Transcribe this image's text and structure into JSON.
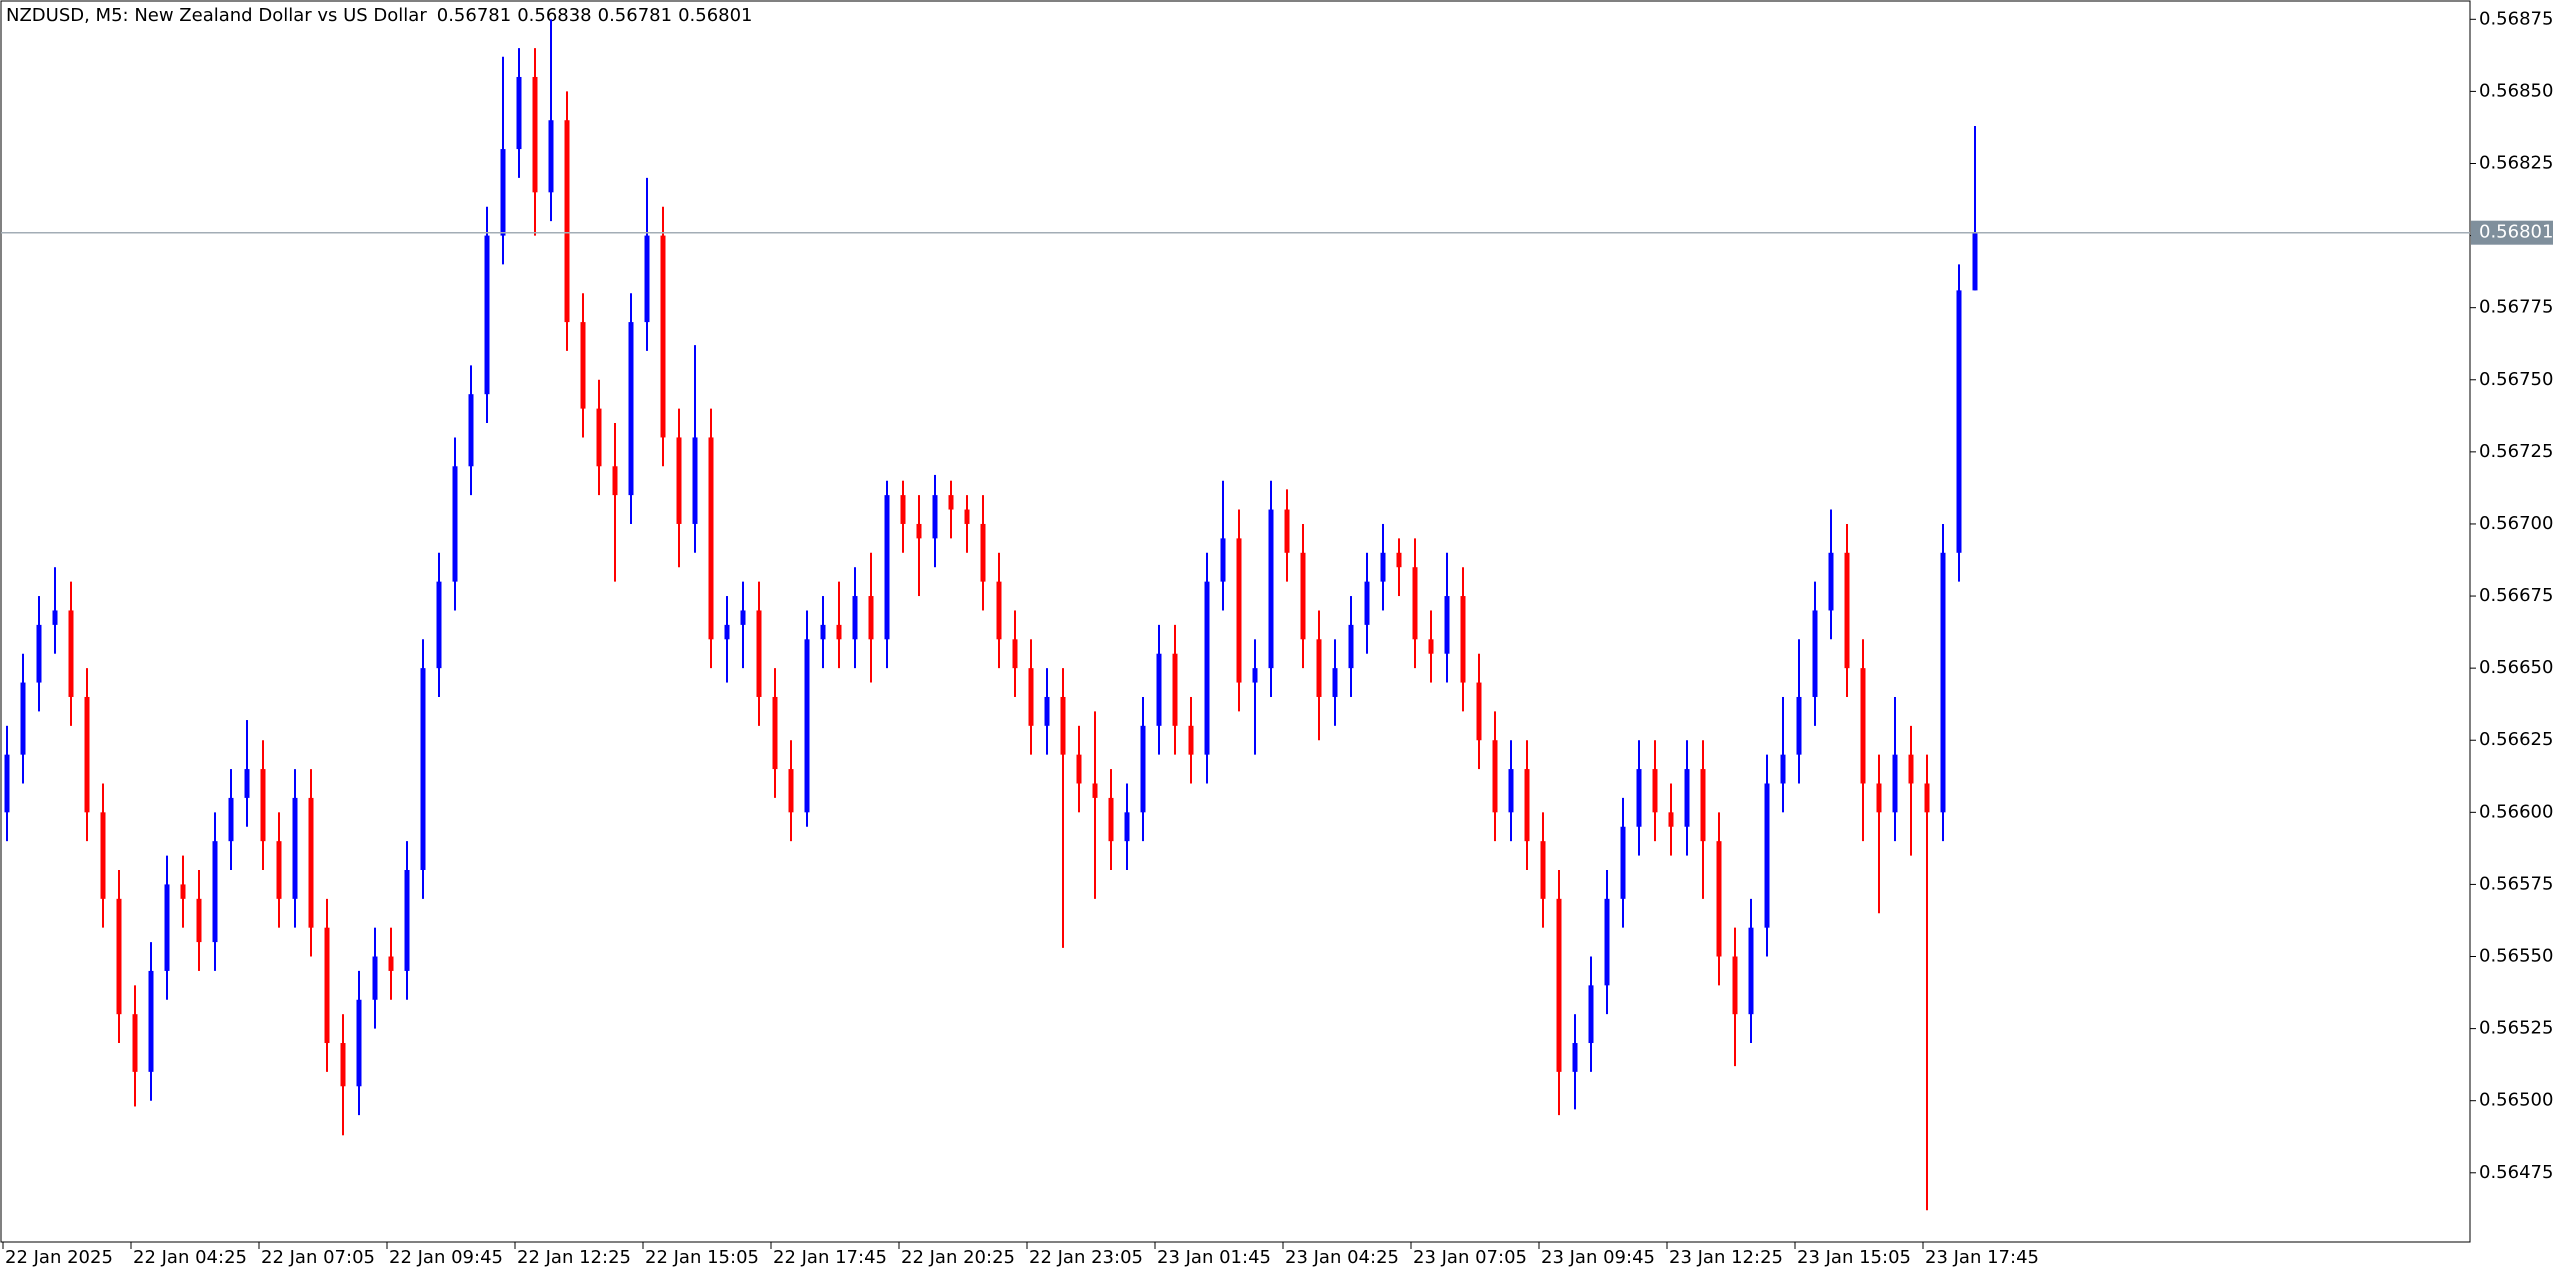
{
  "chart_data": {
    "type": "candlestick",
    "title": "NZDUSD, M5:  New Zealand Dollar vs US Dollar",
    "up_color": "#0000ff",
    "down_color": "#ff0000",
    "grid": false,
    "last_price": 0.56801,
    "open": [
      0.566,
      0.5662,
      0.56645,
      0.56665,
      0.5667,
      0.5664,
      0.566,
      0.5657,
      0.5653,
      0.5651,
      0.56545,
      0.56575,
      0.5657,
      0.56555,
      0.5659,
      0.56605,
      0.56615,
      0.5659,
      0.5657,
      0.56605,
      0.5656,
      0.5652,
      0.56505,
      0.56535,
      0.5655,
      0.56545,
      0.5658,
      0.5665,
      0.5668,
      0.5672,
      0.56745,
      0.568,
      0.5683,
      0.56855,
      0.56815,
      0.5684,
      0.5677,
      0.5674,
      0.5672,
      0.5671,
      0.5677,
      0.568,
      0.5673,
      0.567,
      0.5673,
      0.5666,
      0.56665,
      0.5667,
      0.5664,
      0.56615,
      0.566,
      0.5666,
      0.56665,
      0.5666,
      0.56675,
      0.5666,
      0.5671,
      0.567,
      0.56695,
      0.5671,
      0.56705,
      0.567,
      0.5668,
      0.5666,
      0.5665,
      0.5663,
      0.5664,
      0.5662,
      0.5661,
      0.56605,
      0.5659,
      0.566,
      0.5663,
      0.56655,
      0.5663,
      0.5662,
      0.5668,
      0.56695,
      0.56645,
      0.5665,
      0.56705,
      0.5669,
      0.5666,
      0.5664,
      0.5665,
      0.56665,
      0.5668,
      0.5669,
      0.56685,
      0.5666,
      0.56655,
      0.56675,
      0.56645,
      0.56625,
      0.566,
      0.56615,
      0.5659,
      0.5657,
      0.5651,
      0.5652,
      0.5654,
      0.5657,
      0.56595,
      0.56615,
      0.566,
      0.56595,
      0.56615,
      0.5659,
      0.5655,
      0.5653,
      0.5656,
      0.5661,
      0.5662,
      0.5664,
      0.5667,
      0.5669,
      0.5665,
      0.5661,
      0.566,
      0.5662,
      0.5661,
      0.566,
      0.5669,
      0.56781
    ],
    "high": [
      0.5663,
      0.56655,
      0.56675,
      0.56685,
      0.5668,
      0.5665,
      0.5661,
      0.5658,
      0.5654,
      0.56555,
      0.56585,
      0.56585,
      0.5658,
      0.566,
      0.56615,
      0.56632,
      0.56625,
      0.566,
      0.56615,
      0.56615,
      0.5657,
      0.5653,
      0.56545,
      0.5656,
      0.5656,
      0.5659,
      0.5666,
      0.5669,
      0.5673,
      0.56755,
      0.5681,
      0.56862,
      0.56865,
      0.56865,
      0.56875,
      0.5685,
      0.5678,
      0.5675,
      0.56735,
      0.5678,
      0.5682,
      0.5681,
      0.5674,
      0.56762,
      0.5674,
      0.56675,
      0.5668,
      0.5668,
      0.5665,
      0.56625,
      0.5667,
      0.56675,
      0.5668,
      0.56685,
      0.5669,
      0.56715,
      0.56715,
      0.5671,
      0.56717,
      0.56715,
      0.5671,
      0.5671,
      0.5669,
      0.5667,
      0.5666,
      0.5665,
      0.5665,
      0.5663,
      0.56635,
      0.56615,
      0.5661,
      0.5664,
      0.56665,
      0.56665,
      0.5664,
      0.5669,
      0.56715,
      0.56705,
      0.5666,
      0.56715,
      0.56712,
      0.567,
      0.5667,
      0.5666,
      0.56675,
      0.5669,
      0.567,
      0.56695,
      0.56695,
      0.5667,
      0.5669,
      0.56685,
      0.56655,
      0.56635,
      0.56625,
      0.56625,
      0.566,
      0.5658,
      0.5653,
      0.5655,
      0.5658,
      0.56605,
      0.56625,
      0.56625,
      0.5661,
      0.56625,
      0.56625,
      0.566,
      0.5656,
      0.5657,
      0.5662,
      0.5664,
      0.5666,
      0.5668,
      0.56705,
      0.567,
      0.5666,
      0.5662,
      0.5664,
      0.5663,
      0.5662,
      0.567,
      0.5679,
      0.56838
    ],
    "low": [
      0.5659,
      0.5661,
      0.56635,
      0.56655,
      0.5663,
      0.5659,
      0.5656,
      0.5652,
      0.56498,
      0.565,
      0.56535,
      0.5656,
      0.56545,
      0.56545,
      0.5658,
      0.56595,
      0.5658,
      0.5656,
      0.5656,
      0.5655,
      0.5651,
      0.56488,
      0.56495,
      0.56525,
      0.56535,
      0.56535,
      0.5657,
      0.5664,
      0.5667,
      0.5671,
      0.56735,
      0.5679,
      0.5682,
      0.568,
      0.56805,
      0.5676,
      0.5673,
      0.5671,
      0.5668,
      0.567,
      0.5676,
      0.5672,
      0.56685,
      0.5669,
      0.5665,
      0.56645,
      0.5665,
      0.5663,
      0.56605,
      0.5659,
      0.56595,
      0.5665,
      0.5665,
      0.5665,
      0.56645,
      0.5665,
      0.5669,
      0.56675,
      0.56685,
      0.56695,
      0.5669,
      0.5667,
      0.5665,
      0.5664,
      0.5662,
      0.5662,
      0.56553,
      0.566,
      0.5657,
      0.5658,
      0.5658,
      0.5659,
      0.5662,
      0.5662,
      0.5661,
      0.5661,
      0.5667,
      0.56635,
      0.5662,
      0.5664,
      0.5668,
      0.5665,
      0.56625,
      0.5663,
      0.5664,
      0.56655,
      0.5667,
      0.56675,
      0.5665,
      0.56645,
      0.56645,
      0.56635,
      0.56615,
      0.5659,
      0.5659,
      0.5658,
      0.5656,
      0.56495,
      0.56497,
      0.5651,
      0.5653,
      0.5656,
      0.56585,
      0.5659,
      0.56585,
      0.56585,
      0.5657,
      0.5654,
      0.56512,
      0.5652,
      0.5655,
      0.566,
      0.5661,
      0.5663,
      0.5666,
      0.5664,
      0.5659,
      0.56565,
      0.5659,
      0.56585,
      0.56462,
      0.5659,
      0.5668,
      0.56781
    ],
    "close": [
      0.5662,
      0.56645,
      0.56665,
      0.5667,
      0.5664,
      0.566,
      0.5657,
      0.5653,
      0.5651,
      0.56545,
      0.56575,
      0.5657,
      0.56555,
      0.5659,
      0.56605,
      0.56615,
      0.5659,
      0.5657,
      0.56605,
      0.5656,
      0.5652,
      0.56505,
      0.56535,
      0.5655,
      0.56545,
      0.5658,
      0.5665,
      0.5668,
      0.5672,
      0.56745,
      0.568,
      0.5683,
      0.56855,
      0.56815,
      0.5684,
      0.5677,
      0.5674,
      0.5672,
      0.5671,
      0.5677,
      0.568,
      0.5673,
      0.567,
      0.5673,
      0.5666,
      0.56665,
      0.5667,
      0.5664,
      0.56615,
      0.566,
      0.5666,
      0.56665,
      0.5666,
      0.56675,
      0.5666,
      0.5671,
      0.567,
      0.56695,
      0.5671,
      0.56705,
      0.567,
      0.5668,
      0.5666,
      0.5665,
      0.5663,
      0.5664,
      0.5662,
      0.5661,
      0.56605,
      0.5659,
      0.566,
      0.5663,
      0.56655,
      0.5663,
      0.5662,
      0.5668,
      0.56695,
      0.56645,
      0.5665,
      0.56705,
      0.5669,
      0.5666,
      0.5664,
      0.5665,
      0.56665,
      0.5668,
      0.5669,
      0.56685,
      0.5666,
      0.56655,
      0.56675,
      0.56645,
      0.56625,
      0.566,
      0.56615,
      0.5659,
      0.5657,
      0.5651,
      0.5652,
      0.5654,
      0.5657,
      0.56595,
      0.56615,
      0.566,
      0.56595,
      0.56615,
      0.5659,
      0.5655,
      0.5653,
      0.5656,
      0.5661,
      0.5662,
      0.5664,
      0.5667,
      0.5669,
      0.5665,
      0.5661,
      0.566,
      0.5662,
      0.5661,
      0.566,
      0.5669,
      0.56781,
      0.56801
    ],
    "ylim": [
      0.56451,
      0.56881
    ],
    "yticks": [
      0.56475,
      {
        "value": 0.565,
        "label": "0.56500"
      },
      0.56525,
      {
        "value": 0.5655,
        "label": "0.56550"
      },
      0.56575,
      {
        "value": 0.566,
        "label": "0.56600"
      },
      0.56625,
      {
        "value": 0.5665,
        "label": "0.56650"
      },
      0.56675,
      {
        "value": 0.567,
        "label": "0.56700"
      },
      0.56725,
      {
        "value": 0.5675,
        "label": "0.56750"
      },
      0.56775,
      {
        "value": 0.568,
        "label": "0.56800"
      },
      0.56825,
      {
        "value": 0.5685,
        "label": "0.56850"
      },
      0.56875
    ],
    "xticks": [
      {
        "value": 0,
        "label": "22 Jan 2025"
      },
      {
        "value": 8,
        "label": "22 Jan 04:25"
      },
      {
        "value": 16,
        "label": "22 Jan 07:05"
      },
      {
        "value": 24,
        "label": "22 Jan 09:45"
      },
      {
        "value": 32,
        "label": "22 Jan 12:25"
      },
      {
        "value": 40,
        "label": "22 Jan 15:05"
      },
      {
        "value": 48,
        "label": "22 Jan 17:45"
      },
      {
        "value": 56,
        "label": "22 Jan 20:25"
      },
      {
        "value": 64,
        "label": "22 Jan 23:05"
      },
      {
        "value": 72,
        "label": "23 Jan 01:45"
      },
      {
        "value": 80,
        "label": "23 Jan 04:25"
      },
      {
        "value": 88,
        "label": "23 Jan 07:05"
      },
      {
        "value": 96,
        "label": "23 Jan 09:45"
      },
      {
        "value": 104,
        "label": "23 Jan 12:25"
      },
      {
        "value": 112,
        "label": "23 Jan 15:05"
      },
      {
        "value": 120,
        "label": "23 Jan 17:45"
      }
    ]
  }
}
